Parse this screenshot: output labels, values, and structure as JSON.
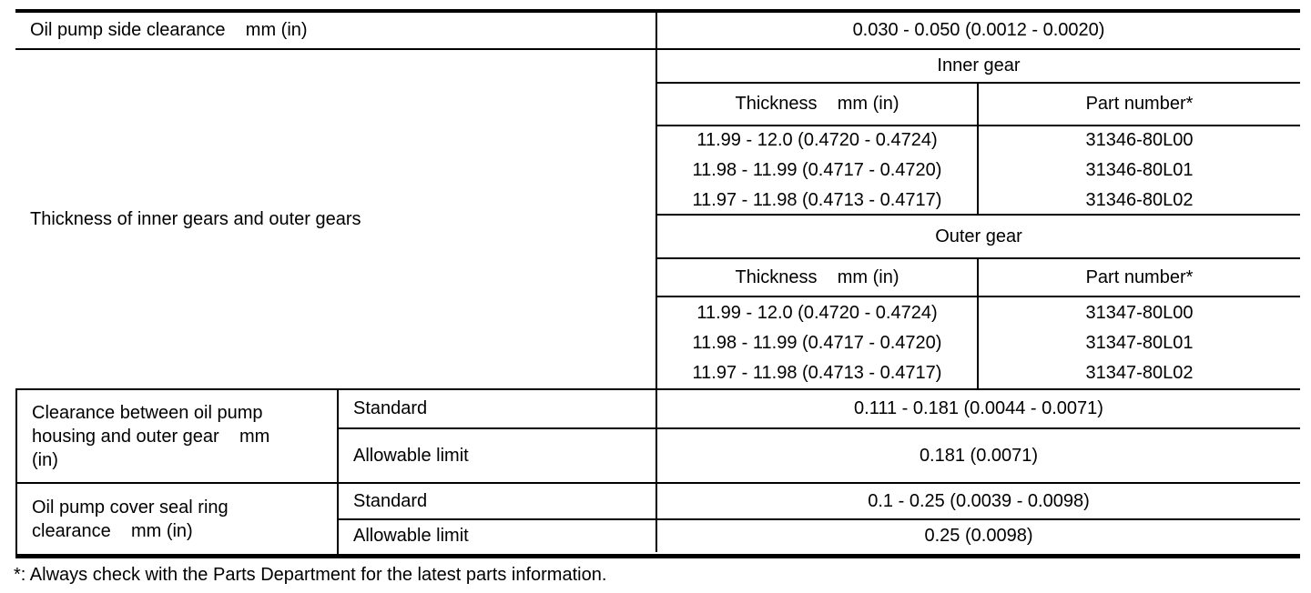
{
  "side_clearance": {
    "label": "Oil pump side clearance    mm (in)",
    "value": "0.030 - 0.050 (0.0012 - 0.0020)"
  },
  "gears": {
    "label": "Thickness of inner gears and outer gears",
    "inner": {
      "title": "Inner gear",
      "col_thickness": "Thickness    mm (in)",
      "col_part": "Part number*",
      "rows": [
        {
          "thickness": "11.99 - 12.0 (0.4720 - 0.4724)",
          "part": "31346-80L00"
        },
        {
          "thickness": "11.98 - 11.99 (0.4717 - 0.4720)",
          "part": "31346-80L01"
        },
        {
          "thickness": "11.97 - 11.98 (0.4713 - 0.4717)",
          "part": "31346-80L02"
        }
      ]
    },
    "outer": {
      "title": "Outer gear",
      "col_thickness": "Thickness    mm (in)",
      "col_part": "Part number*",
      "rows": [
        {
          "thickness": "11.99 - 12.0 (0.4720 - 0.4724)",
          "part": "31347-80L00"
        },
        {
          "thickness": "11.98 - 11.99 (0.4717 - 0.4720)",
          "part": "31347-80L01"
        },
        {
          "thickness": "11.97 - 11.98 (0.4713 - 0.4717)",
          "part": "31347-80L02"
        }
      ]
    }
  },
  "specs": [
    {
      "label": "Clearance between oil pump\nhousing and outer gear    mm\n(in)",
      "rows": [
        {
          "condition": "Standard",
          "value": "0.111 - 0.181 (0.0044 - 0.0071)"
        },
        {
          "condition": "Allowable limit",
          "value": "0.181 (0.0071)"
        }
      ]
    },
    {
      "label": "Oil pump cover seal ring\nclearance    mm (in)",
      "rows": [
        {
          "condition": "Standard",
          "value": "0.1 - 0.25 (0.0039 - 0.0098)"
        },
        {
          "condition": "Allowable limit",
          "value": "0.25 (0.0098)"
        }
      ]
    }
  ],
  "footnote": "*: Always check with the Parts Department for the latest parts information."
}
